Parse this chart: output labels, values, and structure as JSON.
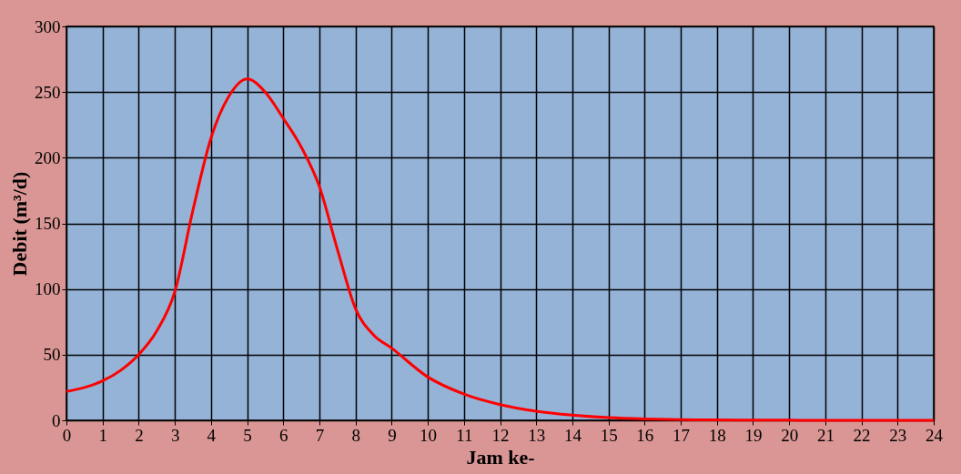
{
  "chart_data": {
    "type": "line",
    "xlabel": "Jam ke-",
    "ylabel": "Debit (m³/d)",
    "x": [
      0,
      0.5,
      1,
      1.5,
      2,
      2.5,
      3,
      3.5,
      4,
      4.5,
      5,
      5.5,
      6,
      6.5,
      7,
      7.5,
      8,
      8.5,
      9,
      10,
      11,
      12,
      13,
      14,
      15,
      16,
      17,
      18,
      19,
      20,
      21,
      22,
      23,
      24
    ],
    "series": [
      {
        "color": "#ff0000",
        "values": [
          22,
          25,
          30,
          38,
          50,
          68,
          98,
          160,
          215,
          247,
          260,
          250,
          230,
          208,
          178,
          130,
          85,
          65,
          55,
          33,
          20,
          12,
          7,
          4,
          2,
          1,
          0.5,
          0.3,
          0.2,
          0.1,
          0,
          0,
          0,
          0
        ]
      }
    ],
    "xlim": [
      0,
      24
    ],
    "ylim": [
      0,
      300
    ],
    "xticks": [
      0,
      1,
      2,
      3,
      4,
      5,
      6,
      7,
      8,
      9,
      10,
      11,
      12,
      13,
      14,
      15,
      16,
      17,
      18,
      19,
      20,
      21,
      22,
      23,
      24
    ],
    "yticks": [
      0,
      50,
      100,
      150,
      200,
      250,
      300
    ],
    "grid": true,
    "line_style": "solid"
  }
}
